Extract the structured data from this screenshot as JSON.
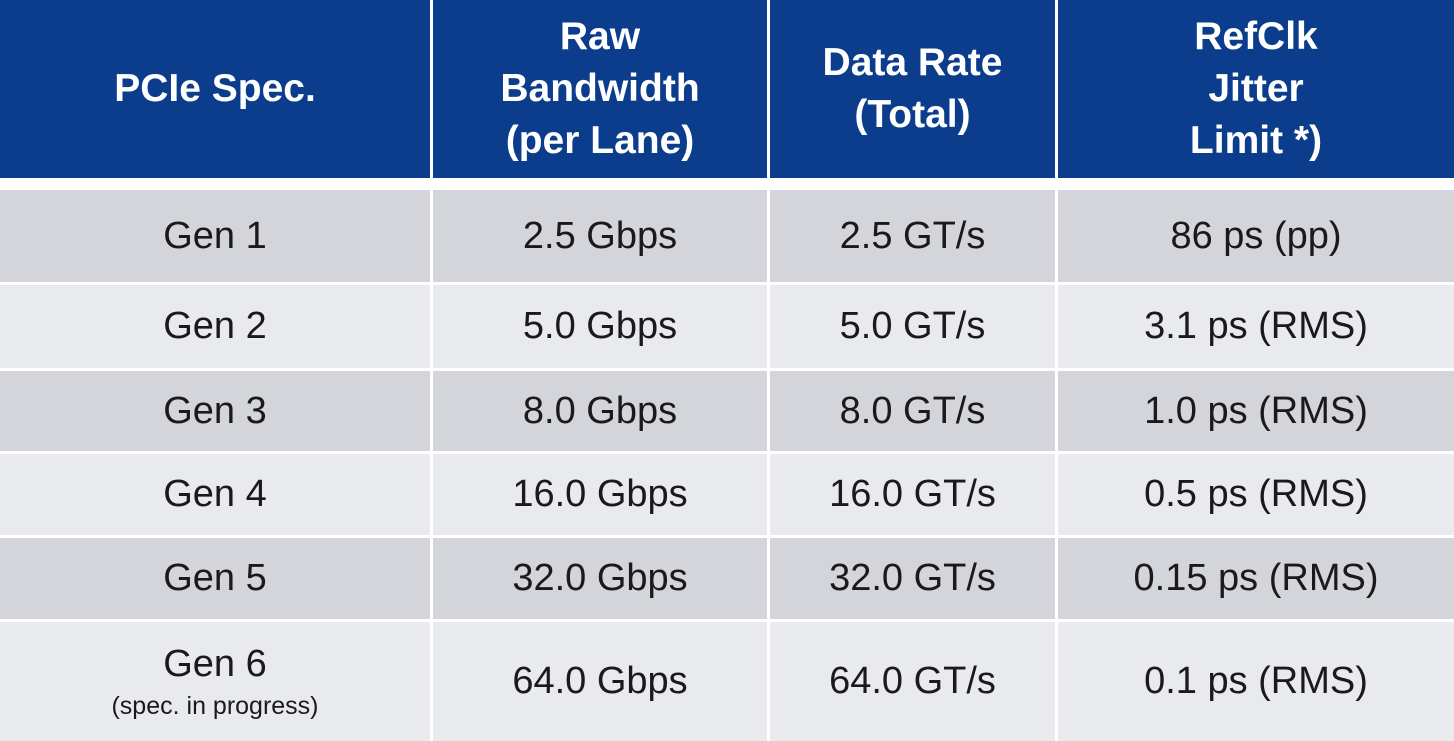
{
  "table": {
    "header": [
      [
        "PCIe Spec."
      ],
      [
        "Raw",
        "Bandwidth",
        "(per Lane)"
      ],
      [
        "Data Rate",
        "(Total)"
      ],
      [
        "RefClk",
        "Jitter",
        "Limit *)"
      ]
    ],
    "rows": [
      {
        "cells": [
          "Gen 1",
          "2.5 Gbps",
          "2.5 GT/s",
          "86 ps (pp)"
        ]
      },
      {
        "cells": [
          "Gen 2",
          "5.0 Gbps",
          "5.0 GT/s",
          "3.1 ps (RMS)"
        ]
      },
      {
        "cells": [
          "Gen 3",
          "8.0 Gbps",
          "8.0 GT/s",
          "1.0 ps (RMS)"
        ]
      },
      {
        "cells": [
          "Gen 4",
          "16.0 Gbps",
          "16.0 GT/s",
          "0.5 ps (RMS)"
        ]
      },
      {
        "cells": [
          "Gen 5",
          "32.0 Gbps",
          "32.0 GT/s",
          "0.15 ps (RMS)"
        ]
      },
      {
        "cells": [
          "Gen 6",
          "64.0 Gbps",
          "64.0 GT/s",
          "0.1 ps (RMS)"
        ],
        "note": "(spec. in progress)"
      }
    ]
  }
}
